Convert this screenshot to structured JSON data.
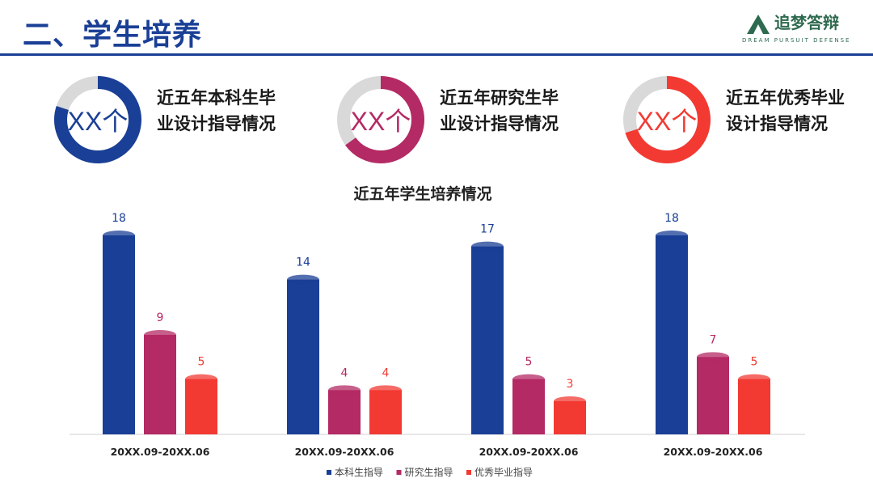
{
  "header": {
    "title": "二、学生培养"
  },
  "logo": {
    "name": "追梦答辩",
    "tagline": "DREAM PURSUIT DEFENSE",
    "icon": "mountain-logo-icon",
    "color": "#2e6a4f"
  },
  "kpis": [
    {
      "value": "XX个",
      "label": "近五年本科生毕业设计指导情况",
      "color": "#1a3f96",
      "fill_fraction": 0.8
    },
    {
      "value": "XX个",
      "label": "近五年研究生毕业设计指导情况",
      "color": "#b42a64",
      "fill_fraction": 0.65
    },
    {
      "value": "XX个",
      "label": "近五年优秀毕业设计指导情况",
      "color": "#f23a33",
      "fill_fraction": 0.7
    }
  ],
  "chart_data": {
    "type": "bar",
    "title": "近五年学生培养情况",
    "categories": [
      "20XX.09-20XX.06",
      "20XX.09-20XX.06",
      "20XX.09-20XX.06",
      "20XX.09-20XX.06"
    ],
    "series": [
      {
        "name": "本科生指导",
        "values": [
          18,
          14,
          17,
          18
        ],
        "color": "#1a3f96"
      },
      {
        "name": "研究生指导",
        "values": [
          9,
          4,
          5,
          7
        ],
        "color": "#b42a64"
      },
      {
        "name": "优秀毕业指导",
        "values": [
          5,
          4,
          3,
          5
        ],
        "color": "#f23a33"
      }
    ],
    "ylim": [
      0,
      18
    ],
    "xlabel": "",
    "ylabel": "",
    "legend": "bottom",
    "grid": false
  }
}
